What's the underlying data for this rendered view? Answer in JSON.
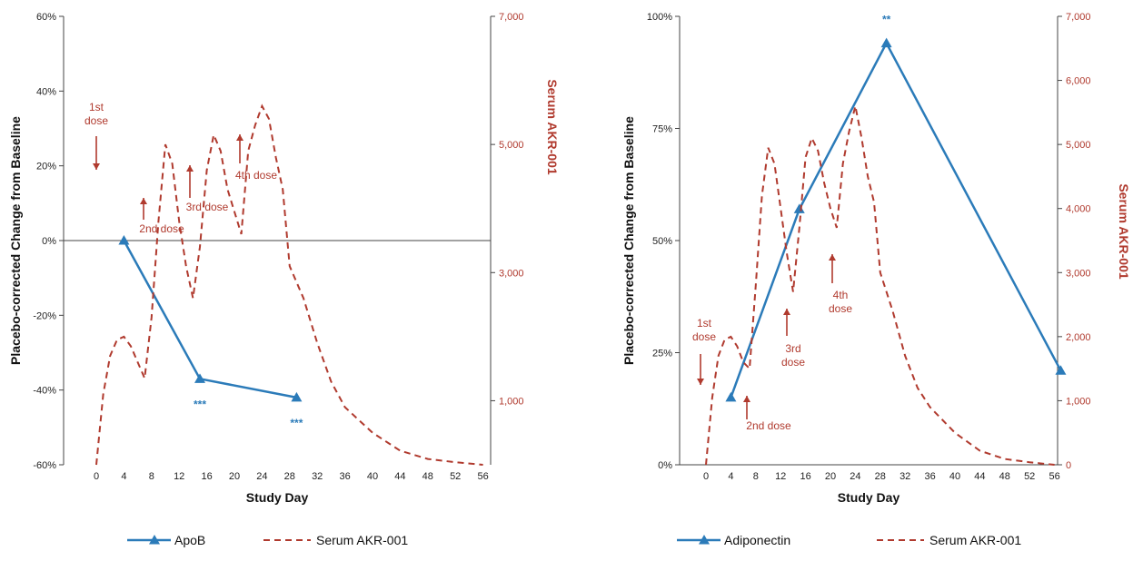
{
  "chart_data": [
    {
      "type": "line",
      "xlabel": "Study Day",
      "ylabel": "Placebo-corrected Change from Baseline",
      "y2label": "Serum AKR-001",
      "xticks": [
        0,
        4,
        8,
        12,
        16,
        20,
        24,
        28,
        32,
        36,
        40,
        44,
        48,
        52,
        56
      ],
      "xtick_labels": [
        "0",
        "4",
        "8",
        "12",
        "16",
        "20",
        "24",
        "28",
        "32",
        "36",
        "40",
        "44",
        "48",
        "52",
        "56"
      ],
      "ylim": [
        -60,
        60
      ],
      "yticks": [
        -60,
        -40,
        -20,
        0,
        20,
        40,
        60
      ],
      "ytick_labels": [
        "-60%",
        "-40%",
        "-20%",
        "0%",
        "20%",
        "40%",
        "60%"
      ],
      "y2lim": [
        0,
        7000
      ],
      "y2ticks": [
        1000,
        3000,
        5000,
        7000
      ],
      "y2tick_labels": [
        "1,000",
        "3,000",
        "5,000",
        "7,000"
      ],
      "legend_position": "bottom",
      "series": [
        {
          "name": "ApoB",
          "axis": "left",
          "color": "#2b7bb9",
          "style": "solid",
          "marker": "triangle",
          "x": [
            4,
            15,
            29
          ],
          "y": [
            0,
            -37,
            -42
          ],
          "significance": [
            null,
            "***",
            "***"
          ]
        },
        {
          "name": "Serum AKR-001",
          "axis": "right",
          "color": "#b03a2e",
          "style": "dashed",
          "x": [
            0,
            1,
            2,
            3,
            4,
            5,
            6,
            7,
            8,
            9,
            10,
            11,
            12,
            13,
            14,
            15,
            16,
            17,
            18,
            19,
            20,
            21,
            22,
            23,
            24,
            25,
            26,
            27,
            28,
            30,
            32,
            34,
            36,
            40,
            44,
            48,
            52,
            56
          ],
          "y": [
            0,
            1100,
            1700,
            1950,
            2000,
            1850,
            1600,
            1350,
            2300,
            3800,
            5000,
            4700,
            3800,
            3100,
            2600,
            3400,
            4600,
            5150,
            4900,
            4300,
            3950,
            3600,
            4900,
            5300,
            5600,
            5400,
            4800,
            4300,
            3100,
            2600,
            1900,
            1300,
            900,
            500,
            220,
            90,
            40,
            0
          ]
        }
      ],
      "annotations": [
        {
          "text_lines": [
            "1st",
            "dose"
          ],
          "day": 0
        },
        {
          "text_lines": [
            "2nd dose"
          ],
          "day": 7
        },
        {
          "text_lines": [
            "3rd dose"
          ],
          "day": 14
        },
        {
          "text_lines": [
            "4th dose"
          ],
          "day": 21
        }
      ]
    },
    {
      "type": "line",
      "xlabel": "Study Day",
      "ylabel": "Placebo-corrected Change from Baseline",
      "y2label": "Serum AKR-001",
      "xticks": [
        0,
        4,
        8,
        12,
        16,
        20,
        24,
        28,
        32,
        36,
        40,
        44,
        48,
        52,
        56
      ],
      "xtick_labels": [
        "0",
        "4",
        "8",
        "12",
        "16",
        "20",
        "24",
        "28",
        "32",
        "36",
        "40",
        "44",
        "48",
        "52",
        "56"
      ],
      "ylim": [
        0,
        100
      ],
      "yticks": [
        0,
        25,
        50,
        75,
        100
      ],
      "ytick_labels": [
        "0%",
        "25%",
        "50%",
        "75%",
        "100%"
      ],
      "y2lim": [
        0,
        7000
      ],
      "y2ticks": [
        0,
        1000,
        2000,
        3000,
        4000,
        5000,
        6000,
        7000
      ],
      "y2tick_labels": [
        "0",
        "1,000",
        "2,000",
        "3,000",
        "4,000",
        "5,000",
        "6,000",
        "7,000"
      ],
      "legend_position": "bottom",
      "series": [
        {
          "name": "Adiponectin",
          "axis": "left",
          "color": "#2b7bb9",
          "style": "solid",
          "marker": "triangle",
          "x": [
            4,
            15,
            29,
            57
          ],
          "y": [
            15,
            57,
            94,
            21
          ],
          "significance": [
            null,
            null,
            "**",
            null
          ]
        },
        {
          "name": "Serum AKR-001",
          "axis": "right",
          "color": "#b03a2e",
          "style": "dashed",
          "x": [
            0,
            1,
            2,
            3,
            4,
            5,
            6,
            7,
            8,
            9,
            10,
            11,
            12,
            13,
            14,
            15,
            16,
            17,
            18,
            19,
            20,
            21,
            22,
            23,
            24,
            25,
            26,
            27,
            28,
            30,
            32,
            34,
            36,
            40,
            44,
            48,
            52,
            56
          ],
          "y": [
            0,
            1050,
            1700,
            1950,
            2000,
            1850,
            1600,
            1500,
            2800,
            4200,
            4950,
            4700,
            4000,
            3300,
            2700,
            3700,
            4800,
            5100,
            4900,
            4400,
            4000,
            3700,
            4700,
            5200,
            5600,
            5100,
            4500,
            4100,
            3000,
            2400,
            1700,
            1200,
            900,
            500,
            220,
            90,
            40,
            0
          ]
        }
      ],
      "annotations": [
        {
          "text_lines": [
            "1st",
            "dose"
          ],
          "day": 0
        },
        {
          "text_lines": [
            "2nd dose"
          ],
          "day": 7
        },
        {
          "text_lines": [
            "3rd",
            "dose"
          ],
          "day": 14
        },
        {
          "text_lines": [
            "4th",
            "dose"
          ],
          "day": 21
        }
      ]
    }
  ]
}
